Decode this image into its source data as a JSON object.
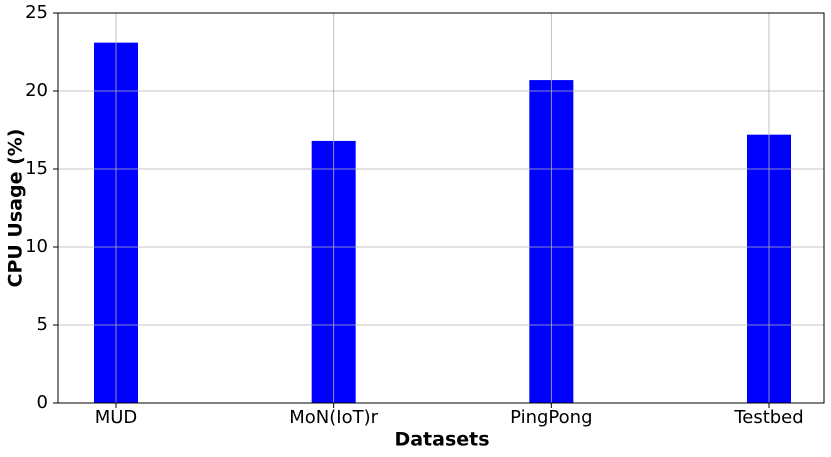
{
  "chart_data": {
    "type": "bar",
    "x_label": "Datasets",
    "y_label": "CPU Usage (%)",
    "categories": [
      "MUD",
      "MoN(IoT)r",
      "PingPong",
      "Testbed"
    ],
    "values": [
      23.1,
      16.8,
      20.7,
      17.2
    ],
    "color": "#0000ff",
    "ylim": [
      0,
      25
    ],
    "yticks": [
      0,
      5,
      10,
      15,
      20,
      25
    ],
    "grid": true
  }
}
